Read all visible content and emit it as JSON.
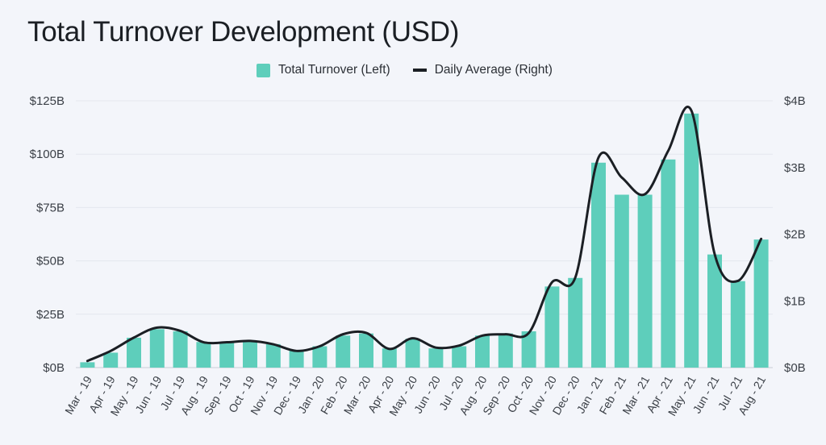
{
  "chart_data": {
    "type": "bar",
    "title": "Total Turnover Development (USD)",
    "categories": [
      "Mar - 19",
      "Apr - 19",
      "May - 19",
      "Jun - 19",
      "Jul - 19",
      "Aug - 19",
      "Sep - 19",
      "Oct - 19",
      "Nov - 19",
      "Dec - 19",
      "Jan - 20",
      "Feb - 20",
      "Mar - 20",
      "Apr - 20",
      "May - 20",
      "Jun - 20",
      "Jul - 20",
      "Aug - 20",
      "Sep - 20",
      "Oct - 20",
      "Nov - 20",
      "Dec - 20",
      "Jan - 21",
      "Feb - 21",
      "Mar - 21",
      "Apr - 21",
      "May - 21",
      "Jun - 21",
      "Jul - 21",
      "Aug - 21"
    ],
    "series": [
      {
        "name": "Total Turnover (Left)",
        "type": "bar",
        "axis": "left",
        "color": "#5ecebb",
        "values": [
          2.5,
          7,
          14,
          18,
          17,
          12,
          12,
          12.5,
          11,
          8,
          10,
          15,
          16,
          9,
          13.5,
          9,
          10,
          15,
          16,
          17,
          38,
          42,
          96,
          81,
          81,
          97.5,
          119,
          53,
          40.5,
          60
        ]
      },
      {
        "name": "Daily Average (Right)",
        "type": "line",
        "axis": "right",
        "color": "#1b1f24",
        "values": [
          0.1,
          0.25,
          0.45,
          0.6,
          0.55,
          0.38,
          0.38,
          0.4,
          0.35,
          0.25,
          0.32,
          0.5,
          0.52,
          0.28,
          0.44,
          0.3,
          0.33,
          0.48,
          0.5,
          0.52,
          1.28,
          1.35,
          3.15,
          2.85,
          2.6,
          3.25,
          3.85,
          1.7,
          1.3,
          1.93
        ]
      }
    ],
    "y_left": {
      "min": 0,
      "max": 125,
      "ticks": [
        0,
        25,
        50,
        75,
        100,
        125
      ],
      "tick_labels": [
        "$0B",
        "$25B",
        "$50B",
        "$75B",
        "$100B",
        "$125B"
      ]
    },
    "y_right": {
      "min": 0,
      "max": 4,
      "ticks": [
        0,
        1,
        2,
        3,
        4
      ],
      "tick_labels": [
        "$0B",
        "$1B",
        "$2B",
        "$3B",
        "$4B"
      ]
    },
    "grid": true,
    "legend_position": "top-center"
  }
}
